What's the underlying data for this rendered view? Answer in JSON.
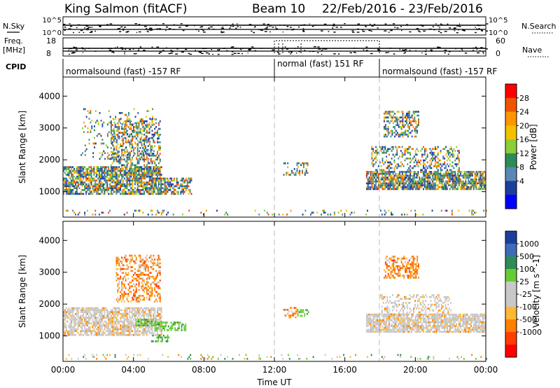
{
  "header": {
    "title": "King Salmon (fitACF)",
    "beam": "Beam 10",
    "date_range": "22/Feb/2016 - 23/Feb/2016"
  },
  "strips": {
    "nsky_label": "N.Sky",
    "nsearch_label": "N.Search",
    "nsky_ticks": [
      "10^5",
      "10^0"
    ],
    "nsearch_ticks": [
      "10^5",
      "10^0"
    ],
    "freq_label": "Freq.",
    "freq_unit": "[MHz]",
    "freq_ticks": [
      "18",
      "8"
    ],
    "nave_label": "Nave",
    "nave_ticks": [
      "60",
      "0"
    ],
    "cpid_label": "CPID",
    "cpid_segments": [
      {
        "label": "normalsound (fast) -157 RF",
        "start": 0,
        "end": 12
      },
      {
        "label": "normal (fast) 151 RF",
        "start": 12,
        "end": 18
      },
      {
        "label": "normalsound (fast) -157 RF",
        "start": 18,
        "end": 24
      }
    ]
  },
  "chart_data": [
    {
      "type": "heatmap",
      "id": "power",
      "ylabel": "Slant Range [km]",
      "yticks": [
        1000,
        2000,
        3000,
        4000
      ],
      "ylim": [
        200,
        4600
      ],
      "xlim": [
        0,
        24
      ],
      "colorbar_label": "Power [dB]",
      "colorbar_ticks": [
        "28",
        "24",
        "20",
        "16",
        "12",
        "8",
        "4"
      ],
      "colorbar_colors": [
        "#ff0000",
        "#ee5500",
        "#ff9500",
        "#f2c200",
        "#8ccd3a",
        "#2e8b57",
        "#5a87b5",
        "#1c3f9b",
        "#0000ff"
      ],
      "dashed_lines_x": [
        12,
        18
      ],
      "scatter_regions": [
        {
          "x0": 0.0,
          "x1": 5.6,
          "y0": 900,
          "y1": 1800,
          "palette": "power",
          "density": 0.75
        },
        {
          "x0": 2.7,
          "x1": 5.5,
          "y0": 1500,
          "y1": 3300,
          "palette": "power",
          "density": 0.45
        },
        {
          "x0": 1.0,
          "x1": 5.2,
          "y0": 2000,
          "y1": 3600,
          "palette": "power",
          "density": 0.12
        },
        {
          "x0": 5.0,
          "x1": 7.3,
          "y0": 900,
          "y1": 1400,
          "palette": "power",
          "density": 0.55
        },
        {
          "x0": 12.5,
          "x1": 13.9,
          "y0": 1500,
          "y1": 1900,
          "palette": "power",
          "density": 0.35
        },
        {
          "x0": 17.2,
          "x1": 24.0,
          "y0": 1050,
          "y1": 1650,
          "palette": "power",
          "density": 0.8
        },
        {
          "x0": 17.5,
          "x1": 22.5,
          "y0": 1650,
          "y1": 2400,
          "palette": "power",
          "density": 0.35
        },
        {
          "x0": 18.2,
          "x1": 20.2,
          "y0": 2700,
          "y1": 3500,
          "palette": "power",
          "density": 0.55
        },
        {
          "x0": 0.0,
          "x1": 24.0,
          "y0": 250,
          "y1": 420,
          "palette": "power",
          "density": 0.12
        }
      ]
    },
    {
      "type": "heatmap",
      "id": "velocity",
      "xlabel": "Time UT",
      "ylabel": "Slant Range [km]",
      "xticks": [
        "00:00",
        "04:00",
        "08:00",
        "12:00",
        "16:00",
        "20:00",
        "00:00"
      ],
      "xtick_values": [
        0,
        4,
        8,
        12,
        16,
        20,
        24
      ],
      "yticks": [
        1000,
        2000,
        3000,
        4000
      ],
      "ylim": [
        200,
        4600
      ],
      "xlim": [
        0,
        24
      ],
      "colorbar_label": "Velocity [m s^-1]",
      "colorbar_ticks": [
        "1000",
        "500",
        "100",
        "25",
        "-25",
        "-100",
        "-500",
        "-1000"
      ],
      "colorbar_colors": [
        "#1c3f9b",
        "#3d6cb8",
        "#2e8b57",
        "#66cc33",
        "#c8c8c8",
        "#c8c8c8",
        "#ffb833",
        "#ff8000",
        "#ff3d00",
        "#ff0000"
      ],
      "dashed_lines_x": [
        12,
        18
      ],
      "scatter_regions": [
        {
          "x0": 0.0,
          "x1": 5.6,
          "y0": 1000,
          "y1": 1850,
          "palette": "gray",
          "density": 0.75
        },
        {
          "x0": 3.0,
          "x1": 5.5,
          "y0": 2050,
          "y1": 3500,
          "palette": "orange",
          "density": 0.45
        },
        {
          "x0": 4.1,
          "x1": 5.3,
          "y0": 1300,
          "y1": 1500,
          "palette": "green",
          "density": 0.65
        },
        {
          "x0": 5.2,
          "x1": 7.0,
          "y0": 1150,
          "y1": 1400,
          "palette": "green",
          "density": 0.6
        },
        {
          "x0": 5.0,
          "x1": 6.0,
          "y0": 800,
          "y1": 1000,
          "palette": "green",
          "density": 0.5
        },
        {
          "x0": 12.5,
          "x1": 13.3,
          "y0": 1550,
          "y1": 1900,
          "palette": "orange",
          "density": 0.4
        },
        {
          "x0": 13.3,
          "x1": 13.9,
          "y0": 1600,
          "y1": 1800,
          "palette": "green",
          "density": 0.4
        },
        {
          "x0": 17.2,
          "x1": 24.0,
          "y0": 1100,
          "y1": 1650,
          "palette": "gray",
          "density": 0.8
        },
        {
          "x0": 18.0,
          "x1": 22.0,
          "y0": 1650,
          "y1": 2300,
          "palette": "gray",
          "density": 0.3
        },
        {
          "x0": 18.2,
          "x1": 20.2,
          "y0": 2800,
          "y1": 3500,
          "palette": "orange",
          "density": 0.5
        },
        {
          "x0": 0.0,
          "x1": 24.0,
          "y0": 250,
          "y1": 400,
          "palette": "mixed",
          "density": 0.12
        }
      ]
    }
  ]
}
